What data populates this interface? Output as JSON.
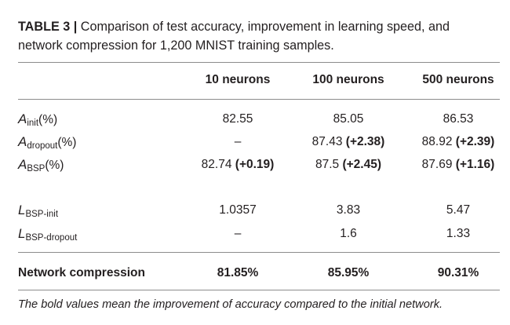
{
  "caption": {
    "label": "TABLE 3 |",
    "text": " Comparison of test accuracy, improvement in learning speed, and network compression for 1,200 MNIST training samples."
  },
  "columns": [
    "10 neurons",
    "100 neurons",
    "500 neurons"
  ],
  "rows": [
    {
      "symbol": "A",
      "sub": "init",
      "suffix": "(%)",
      "cells": [
        {
          "v": "82.55",
          "d": ""
        },
        {
          "v": "85.05",
          "d": ""
        },
        {
          "v": "86.53",
          "d": ""
        }
      ]
    },
    {
      "symbol": "A",
      "sub": "dropout",
      "suffix": "(%)",
      "cells": [
        {
          "v": "–",
          "d": ""
        },
        {
          "v": "87.43 ",
          "d": "(+2.38)"
        },
        {
          "v": "88.92 ",
          "d": "(+2.39)"
        }
      ]
    },
    {
      "symbol": "A",
      "sub": "BSP",
      "suffix": "(%)",
      "cells": [
        {
          "v": "82.74 ",
          "d": "(+0.19)"
        },
        {
          "v": "87.5 ",
          "d": "(+2.45)"
        },
        {
          "v": "87.69 ",
          "d": "(+1.16)"
        }
      ]
    },
    {
      "symbol": "L",
      "sub": "BSP-init",
      "suffix": "",
      "cells": [
        {
          "v": "1.0357",
          "d": ""
        },
        {
          "v": "3.83",
          "d": ""
        },
        {
          "v": "5.47",
          "d": ""
        }
      ]
    },
    {
      "symbol": "L",
      "sub": "BSP-dropout",
      "suffix": "",
      "cells": [
        {
          "v": "–",
          "d": ""
        },
        {
          "v": "1.6",
          "d": ""
        },
        {
          "v": "1.33",
          "d": ""
        }
      ]
    }
  ],
  "compression": {
    "label": "Network compression",
    "values": [
      "81.85%",
      "85.95%",
      "90.31%"
    ]
  },
  "footnote": "The bold values mean the improvement of accuracy compared to the initial network."
}
